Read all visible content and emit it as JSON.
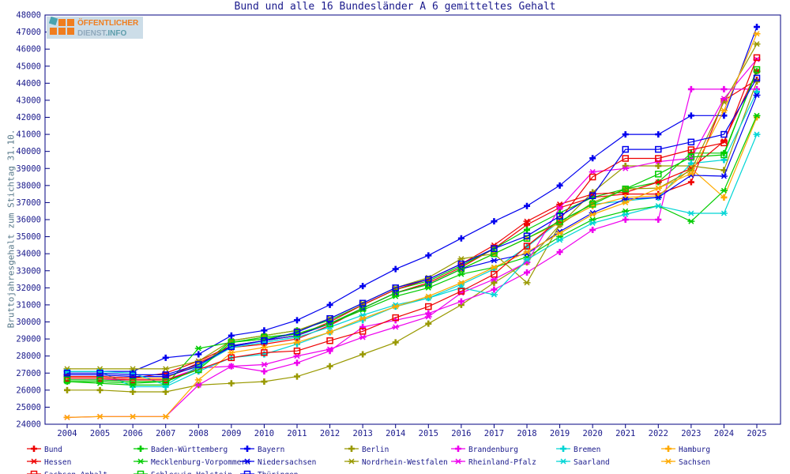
{
  "title": "Bund und alle 16 Bundesländer A 6 gemitteltes Gehalt",
  "y_axis_title": "Bruttojahresgehalt zum Stichtag 31.10.",
  "logo": {
    "line1": "ÖFFENTLICHER",
    "line2_part1": "DIENST",
    "line2_part2": ".INFO"
  },
  "axis": {
    "frame_color": "#000080",
    "tick_label_color": "#1a1a8c",
    "y_tick_min": 24000,
    "y_tick_max": 48000,
    "y_tick_step": 1000
  },
  "chart_data": {
    "type": "line",
    "x": [
      2004,
      2005,
      2006,
      2007,
      2008,
      2009,
      2010,
      2011,
      2012,
      2013,
      2014,
      2015,
      2016,
      2017,
      2018,
      2019,
      2020,
      2021,
      2022,
      2023,
      2024,
      2025
    ],
    "ylim": [
      24000,
      48000
    ],
    "xlabel": "",
    "ylabel": "Bruttojahresgehalt zum Stichtag 31.10.",
    "grid": false,
    "legend_position": "bottom",
    "series": [
      {
        "name": "Bund",
        "color": "#ee0000",
        "marker": "plus",
        "legend_row": 0,
        "legend_col": 0,
        "values": [
          26800,
          26800,
          26700,
          26700,
          27600,
          28500,
          28700,
          29000,
          29800,
          30800,
          31700,
          32300,
          33200,
          34300,
          35700,
          36700,
          37300,
          37500,
          37500,
          38200,
          43000,
          44200
        ]
      },
      {
        "name": "Baden-Württemberg",
        "color": "#00cc00",
        "marker": "plus",
        "legend_row": 0,
        "legend_col": 1,
        "values": [
          26500,
          26500,
          26400,
          26500,
          27300,
          28900,
          29200,
          29500,
          30100,
          31000,
          31900,
          32400,
          33300,
          34300,
          35400,
          36400,
          37300,
          37800,
          38200,
          39900,
          39900,
          44700
        ]
      },
      {
        "name": "Bayern",
        "color": "#0000ee",
        "marker": "plus",
        "legend_row": 0,
        "legend_col": 2,
        "values": [
          27100,
          27100,
          27100,
          27900,
          28100,
          29200,
          29500,
          30100,
          31000,
          32100,
          33100,
          33900,
          34900,
          35900,
          36800,
          38000,
          39600,
          41000,
          41000,
          42100,
          42100,
          47300
        ]
      },
      {
        "name": "Berlin",
        "color": "#999900",
        "marker": "plus",
        "legend_row": 0,
        "legend_col": 3,
        "values": [
          26000,
          26000,
          25900,
          25900,
          26300,
          26400,
          26500,
          26800,
          27400,
          28100,
          28800,
          29900,
          31000,
          32300,
          33500,
          35700,
          37600,
          39150,
          39150,
          39150,
          38900,
          44100
        ]
      },
      {
        "name": "Brandenburg",
        "color": "#ee00ee",
        "marker": "plus",
        "legend_row": 0,
        "legend_col": 4,
        "values": [
          26600,
          26600,
          26600,
          26600,
          27300,
          27400,
          27100,
          27600,
          28300,
          29700,
          30100,
          30500,
          31200,
          31900,
          32900,
          34100,
          35400,
          36000,
          36000,
          43650,
          43650,
          43650
        ]
      },
      {
        "name": "Bremen",
        "color": "#00d5d5",
        "marker": "plus",
        "legend_row": 0,
        "legend_col": 5,
        "values": [
          27100,
          27100,
          26200,
          26200,
          27100,
          27900,
          28100,
          28700,
          29400,
          30100,
          30900,
          31400,
          32200,
          33100,
          34400,
          35900,
          36900,
          37100,
          37300,
          39300,
          39500,
          43500
        ]
      },
      {
        "name": "Hamburg",
        "color": "#ffaa00",
        "marker": "plus",
        "legend_row": 0,
        "legend_col": 6,
        "values": [
          26800,
          26800,
          26700,
          26700,
          27500,
          28600,
          28900,
          29200,
          29900,
          30800,
          31700,
          32200,
          33100,
          34000,
          34900,
          35800,
          36800,
          37300,
          37400,
          39000,
          37300,
          42000
        ]
      },
      {
        "name": "Hessen",
        "color": "#ee0000",
        "marker": "star",
        "legend_row": 1,
        "legend_col": 0,
        "values": [
          26800,
          26800,
          26700,
          27000,
          27700,
          28600,
          28900,
          29200,
          30000,
          31000,
          31900,
          32500,
          33400,
          34500,
          35900,
          36900,
          37500,
          37600,
          38200,
          39000,
          40600,
          44700
        ]
      },
      {
        "name": "Mecklenburg-Vorpommern",
        "color": "#00cc00",
        "marker": "star",
        "legend_row": 1,
        "legend_col": 1,
        "values": [
          26500,
          26400,
          26300,
          26300,
          28450,
          28800,
          29000,
          29300,
          29900,
          30700,
          31500,
          32000,
          32800,
          33200,
          33800,
          35000,
          36000,
          36500,
          36800,
          35900,
          37700,
          42100
        ]
      },
      {
        "name": "Niedersachsen",
        "color": "#0000ee",
        "marker": "star",
        "legend_row": 1,
        "legend_col": 2,
        "values": [
          26900,
          26900,
          26800,
          26800,
          27400,
          28600,
          28900,
          29200,
          29900,
          30800,
          31700,
          32200,
          33100,
          33600,
          34000,
          35300,
          36400,
          37200,
          37300,
          38600,
          38550,
          43300
        ]
      },
      {
        "name": "Nordrhein-Westfalen",
        "color": "#999900",
        "marker": "star",
        "legend_row": 1,
        "legend_col": 3,
        "values": [
          27250,
          27250,
          27250,
          27250,
          27700,
          28900,
          29200,
          29500,
          30200,
          31100,
          32000,
          32600,
          33700,
          34000,
          32300,
          35700,
          37000,
          37800,
          37850,
          38900,
          42900,
          46300
        ]
      },
      {
        "name": "Rheinland-Pfalz",
        "color": "#ee00ee",
        "marker": "star",
        "legend_row": 1,
        "legend_col": 4,
        "values": [
          24400,
          24450,
          24450,
          24450,
          26300,
          27400,
          27500,
          28000,
          28400,
          29100,
          29700,
          30300,
          31700,
          32500,
          33500,
          36700,
          38800,
          39000,
          39400,
          39600,
          43100,
          45400
        ]
      },
      {
        "name": "Saarland",
        "color": "#00d5d5",
        "marker": "star",
        "legend_row": 1,
        "legend_col": 5,
        "values": [
          27100,
          27100,
          27000,
          26300,
          27400,
          28500,
          28800,
          29100,
          29700,
          30400,
          31000,
          31400,
          32000,
          31600,
          33650,
          34800,
          35800,
          36300,
          36800,
          36370,
          36370,
          41000
        ]
      },
      {
        "name": "Sachsen",
        "color": "#ffaa00",
        "marker": "star",
        "legend_row": 1,
        "legend_col": 6,
        "values": [
          24400,
          24450,
          24450,
          24450,
          26600,
          28200,
          28500,
          28800,
          29400,
          30200,
          30900,
          31500,
          32300,
          33200,
          34100,
          35200,
          36300,
          37000,
          37840,
          38700,
          42400,
          46900
        ]
      },
      {
        "name": "Sachsen-Anhalt",
        "color": "#ee0000",
        "marker": "square",
        "legend_row": 2,
        "legend_col": 0,
        "values": [
          26700,
          26700,
          26600,
          26600,
          27200,
          27900,
          28200,
          28300,
          28900,
          29450,
          30250,
          30900,
          31800,
          32800,
          34450,
          36000,
          38500,
          39590,
          39590,
          40100,
          40500,
          45500
        ]
      },
      {
        "name": "Schleswig-Holstein",
        "color": "#00cc00",
        "marker": "square",
        "legend_row": 2,
        "legend_col": 1,
        "values": [
          26600,
          26600,
          26500,
          26500,
          27200,
          28800,
          29100,
          29300,
          29900,
          30800,
          31700,
          32200,
          33100,
          34000,
          34900,
          35900,
          36900,
          37800,
          38670,
          39670,
          39800,
          44800
        ]
      },
      {
        "name": "Thüringen",
        "color": "#0000ee",
        "marker": "square",
        "legend_row": 2,
        "legend_col": 2,
        "values": [
          27000,
          27000,
          26900,
          26900,
          27500,
          28550,
          28900,
          29400,
          30200,
          31100,
          32000,
          32500,
          33400,
          34300,
          35040,
          36200,
          37400,
          40120,
          40120,
          40550,
          41000,
          44300
        ]
      }
    ]
  }
}
